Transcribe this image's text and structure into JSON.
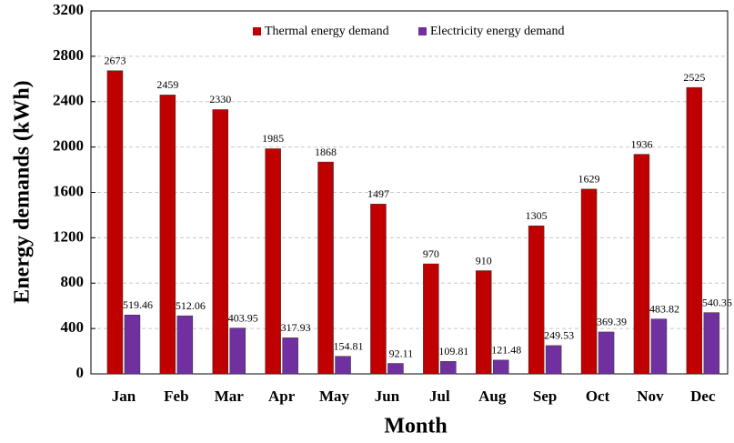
{
  "chart_data": {
    "type": "bar",
    "xlabel": "Month",
    "ylabel": "Energy demands (kWh)",
    "categories": [
      "Jan",
      "Feb",
      "Mar",
      "Apr",
      "May",
      "Jun",
      "Jul",
      "Aug",
      "Sep",
      "Oct",
      "Nov",
      "Dec"
    ],
    "series": [
      {
        "name": "Thermal energy demand",
        "color": "#c00000",
        "values": [
          2673,
          2459,
          2330,
          1985,
          1868,
          1497,
          970,
          910,
          1305,
          1629,
          1936,
          2525
        ]
      },
      {
        "name": "Electricity energy demand",
        "color": "#7030a0",
        "values": [
          519.46,
          512.06,
          403.95,
          317.93,
          154.81,
          92.11,
          109.81,
          121.48,
          249.53,
          369.39,
          483.82,
          540.36
        ]
      }
    ],
    "ylim": [
      0,
      3200
    ],
    "yticks": [
      0,
      400,
      800,
      1200,
      1600,
      2000,
      2400,
      2800,
      3200
    ],
    "grid": true,
    "legend": "top"
  }
}
